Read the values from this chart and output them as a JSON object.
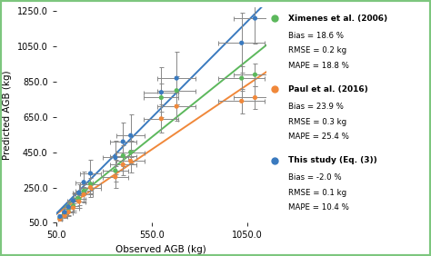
{
  "xlabel": "Observed AGB (kg)",
  "ylabel": "Predicted AGB (kg)",
  "xlim": [
    50.0,
    1150.0
  ],
  "ylim": [
    50.0,
    1270.0
  ],
  "xticks": [
    50.0,
    550.0,
    1050.0
  ],
  "yticks": [
    50.0,
    250.0,
    450.0,
    650.0,
    850.0,
    1050.0,
    1250.0
  ],
  "background": "#ffffff",
  "border_color": "#7dc67e",
  "errbar_color": "#888888",
  "ximenes_color": "#5cb85c",
  "paul_color": "#f0883a",
  "study_color": "#3a7abf",
  "ximenes_x": [
    70,
    95,
    115,
    140,
    170,
    195,
    230,
    360,
    400,
    440,
    600,
    680,
    1020,
    1090
  ],
  "ximenes_y": [
    75,
    100,
    115,
    145,
    185,
    230,
    270,
    345,
    430,
    450,
    760,
    800,
    870,
    890
  ],
  "ximenes_xerr": [
    10,
    15,
    20,
    30,
    35,
    45,
    55,
    65,
    70,
    75,
    90,
    100,
    120,
    110
  ],
  "ximenes_yerr": [
    10,
    15,
    20,
    25,
    35,
    45,
    55,
    60,
    60,
    65,
    80,
    80,
    70,
    65
  ],
  "paul_x": [
    70,
    95,
    115,
    140,
    170,
    195,
    230,
    360,
    400,
    440,
    600,
    680,
    1020,
    1090
  ],
  "paul_y": [
    70,
    90,
    110,
    135,
    170,
    210,
    250,
    310,
    380,
    400,
    640,
    710,
    740,
    760
  ],
  "paul_xerr": [
    10,
    15,
    20,
    30,
    35,
    45,
    55,
    65,
    70,
    75,
    90,
    100,
    120,
    110
  ],
  "paul_yerr": [
    10,
    15,
    20,
    25,
    35,
    45,
    55,
    60,
    60,
    65,
    80,
    80,
    70,
    65
  ],
  "study_x": [
    70,
    95,
    115,
    140,
    170,
    195,
    230,
    360,
    400,
    440,
    600,
    680,
    1020,
    1090
  ],
  "study_y": [
    85,
    110,
    140,
    175,
    220,
    280,
    330,
    420,
    510,
    545,
    790,
    870,
    1070,
    1210
  ],
  "study_xerr": [
    10,
    15,
    20,
    30,
    35,
    45,
    55,
    65,
    70,
    75,
    90,
    100,
    120,
    110
  ],
  "study_yerr": [
    15,
    20,
    30,
    40,
    50,
    60,
    75,
    95,
    110,
    120,
    140,
    150,
    170,
    145
  ],
  "legend_entries": [
    {
      "label": "Ximenes et al. (2006)",
      "line1": "Bias = 18.6 %",
      "line2": "RMSE = 0.2 kg",
      "line3": "MAPE = 18.8 %",
      "color": "#5cb85c"
    },
    {
      "label": "Paul et al. (2016)",
      "line1": "Bias = 23.9 %",
      "line2": "RMSE = 0.3 kg",
      "line3": "MAPE = 25.4 %",
      "color": "#f0883a"
    },
    {
      "label": "This study (Eq. (3))",
      "line1": "Bias = -2.0 %",
      "line2": "RMSE = 0.1 kg",
      "line3": "MAPE = 10.4 %",
      "color": "#3a7abf"
    }
  ]
}
